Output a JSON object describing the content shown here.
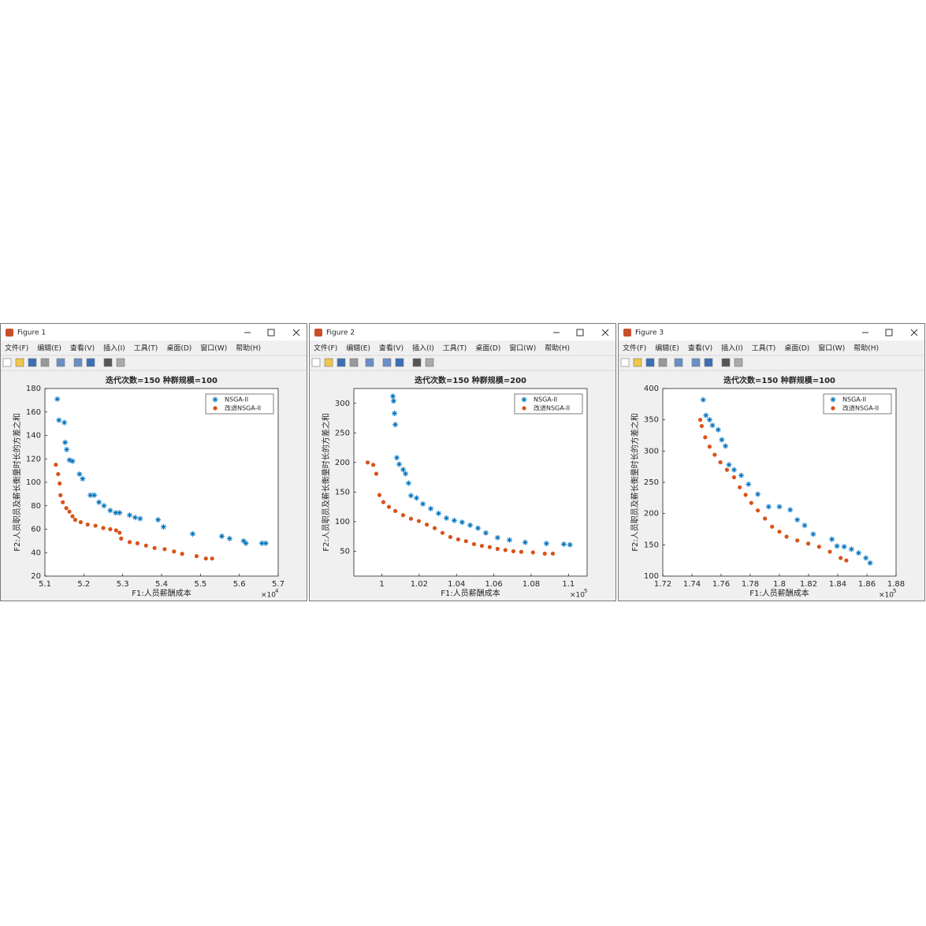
{
  "windows": [
    {
      "title": "Figure 1",
      "menu": [
        "文件(F)",
        "编辑(E)",
        "查看(V)",
        "插入(I)",
        "工具(T)",
        "桌面(D)",
        "窗口(W)",
        "帮助(H)"
      ]
    },
    {
      "title": "Figure 2",
      "menu": [
        "文件(F)",
        "编辑(E)",
        "查看(V)",
        "插入(I)",
        "工具(T)",
        "桌面(D)",
        "窗口(W)",
        "帮助(H)"
      ]
    },
    {
      "title": "Figure 3",
      "menu": [
        "文件(F)",
        "编辑(E)",
        "查看(V)",
        "插入(I)",
        "工具(T)",
        "桌面(D)",
        "窗口(W)",
        "帮助(H)"
      ]
    }
  ],
  "chart_data": [
    {
      "type": "scatter",
      "title": "迭代次数=150    种群规模=100",
      "x_label": "F1:人员薪酬成本",
      "y_label": "F2:人员职员及薪长衡量时长的方差之和",
      "x_exponent_base": "×10",
      "x_exponent_power": "4",
      "legend": "top-right",
      "xlim": [
        5.1,
        5.7
      ],
      "xticks": [
        5.1,
        5.2,
        5.3,
        5.4,
        5.5,
        5.6,
        5.7
      ],
      "ylim": [
        20,
        180
      ],
      "yticks": [
        20,
        40,
        60,
        80,
        100,
        120,
        140,
        160,
        180
      ],
      "series": [
        {
          "name": "NSGA-II",
          "color": "#0072bd",
          "marker": "asterisk",
          "x": [
            5.132,
            5.136,
            5.15,
            5.152,
            5.156,
            5.163,
            5.171,
            5.189,
            5.197,
            5.217,
            5.227,
            5.239,
            5.252,
            5.268,
            5.282,
            5.292,
            5.318,
            5.332,
            5.345,
            5.391,
            5.405,
            5.48,
            5.555,
            5.575,
            5.611,
            5.617,
            5.658,
            5.668
          ],
          "values": [
            171,
            153,
            151,
            134,
            128,
            119,
            118,
            107,
            103,
            89,
            89,
            83,
            80,
            76,
            74,
            74,
            72,
            70,
            69,
            68,
            62,
            56,
            54,
            52,
            50,
            48,
            48,
            48
          ]
        },
        {
          "name": "改进NSGA-II",
          "color": "#d95319",
          "marker": "dot",
          "x": [
            5.128,
            5.134,
            5.138,
            5.14,
            5.146,
            5.155,
            5.163,
            5.171,
            5.178,
            5.192,
            5.21,
            5.23,
            5.25,
            5.268,
            5.283,
            5.292,
            5.296,
            5.318,
            5.338,
            5.36,
            5.382,
            5.408,
            5.432,
            5.453,
            5.49,
            5.514,
            5.53
          ],
          "values": [
            115,
            107,
            99,
            89,
            83,
            78,
            75,
            71,
            68,
            66,
            64,
            63,
            61,
            60,
            59,
            57,
            52,
            49,
            48,
            46,
            44,
            43,
            41,
            39,
            37,
            35,
            35
          ]
        }
      ]
    },
    {
      "type": "scatter",
      "title": "迭代次数=150    种群规模=200",
      "x_label": "F1:人员薪酬成本",
      "y_label": "F2:人员职员及薪长衡量时长的方差之和",
      "x_exponent_base": "×10",
      "x_exponent_power": "5",
      "legend": "top-right",
      "xlim": [
        0.985,
        1.11
      ],
      "xticks": [
        1,
        1.02,
        1.04,
        1.06,
        1.08,
        1.1
      ],
      "ylim": [
        8,
        325
      ],
      "yticks": [
        50,
        100,
        150,
        200,
        250,
        300
      ],
      "series": [
        {
          "name": "NSGA-II",
          "color": "#0072bd",
          "marker": "asterisk",
          "x": [
            1.0059,
            1.0063,
            1.0068,
            1.0072,
            1.008,
            1.0093,
            1.0114,
            1.0127,
            1.0143,
            1.0156,
            1.0186,
            1.022,
            1.0262,
            1.0304,
            1.0346,
            1.0388,
            1.043,
            1.0473,
            1.0515,
            1.0557,
            1.062,
            1.0684,
            1.0768,
            1.0882,
            1.0975,
            1.1008
          ],
          "values": [
            312,
            304,
            283,
            264,
            208,
            197,
            188,
            181,
            165,
            144,
            140,
            130,
            122,
            114,
            106,
            102,
            99,
            94,
            89,
            81,
            73,
            69,
            65,
            63,
            62,
            61
          ]
        },
        {
          "name": "改进NSGA-II",
          "color": "#d95319",
          "marker": "dot",
          "x": [
            0.9924,
            0.9954,
            0.997,
            0.9987,
            1.0008,
            1.0038,
            1.0072,
            1.0114,
            1.0156,
            1.0198,
            1.0241,
            1.0283,
            1.0325,
            1.0367,
            1.0409,
            1.0451,
            1.0494,
            1.0536,
            1.0578,
            1.062,
            1.0662,
            1.0705,
            1.0747,
            1.081,
            1.0873,
            1.0916
          ],
          "values": [
            200,
            196,
            181,
            145,
            133,
            125,
            118,
            111,
            105,
            101,
            95,
            89,
            81,
            74,
            70,
            67,
            62,
            59,
            57,
            54,
            52,
            50,
            49,
            48,
            46,
            46
          ]
        }
      ]
    },
    {
      "type": "scatter",
      "title": "迭代次数=150    种群规模=100",
      "x_label": "F1:人员薪酬成本",
      "y_label": "F2:人员职员及薪长衡量时长的方差之和",
      "x_exponent_base": "×10",
      "x_exponent_power": "5",
      "legend": "top-right",
      "xlim": [
        1.72,
        1.88
      ],
      "xticks": [
        1.72,
        1.74,
        1.76,
        1.78,
        1.8,
        1.82,
        1.84,
        1.86,
        1.88
      ],
      "ylim": [
        100,
        400
      ],
      "yticks": [
        100,
        150,
        200,
        250,
        300,
        350,
        400
      ],
      "series": [
        {
          "name": "NSGA-II",
          "color": "#0072bd",
          "marker": "asterisk",
          "x": [
            1.7477,
            1.7496,
            1.7521,
            1.7541,
            1.758,
            1.7605,
            1.763,
            1.7654,
            1.7689,
            1.7738,
            1.7788,
            1.7852,
            1.7926,
            1.8,
            1.8074,
            1.8123,
            1.8173,
            1.8232,
            1.836,
            1.8395,
            1.8444,
            1.8494,
            1.8543,
            1.8593,
            1.8622
          ],
          "values": [
            382,
            357,
            350,
            341,
            334,
            318,
            308,
            278,
            270,
            261,
            247,
            231,
            211,
            211,
            206,
            190,
            181,
            167,
            159,
            148,
            147,
            143,
            137,
            129,
            121
          ]
        },
        {
          "name": "改进NSGA-II",
          "color": "#d95319",
          "marker": "dot",
          "x": [
            1.7457,
            1.7467,
            1.7491,
            1.7521,
            1.7556,
            1.7595,
            1.764,
            1.7689,
            1.7728,
            1.7768,
            1.7807,
            1.7852,
            1.7901,
            1.795,
            1.8,
            1.8049,
            1.8123,
            1.8198,
            1.8272,
            1.8346,
            1.842,
            1.8459
          ],
          "values": [
            350,
            340,
            322,
            307,
            294,
            282,
            270,
            258,
            242,
            230,
            217,
            205,
            192,
            179,
            171,
            163,
            157,
            152,
            147,
            139,
            129,
            125
          ]
        }
      ]
    }
  ]
}
